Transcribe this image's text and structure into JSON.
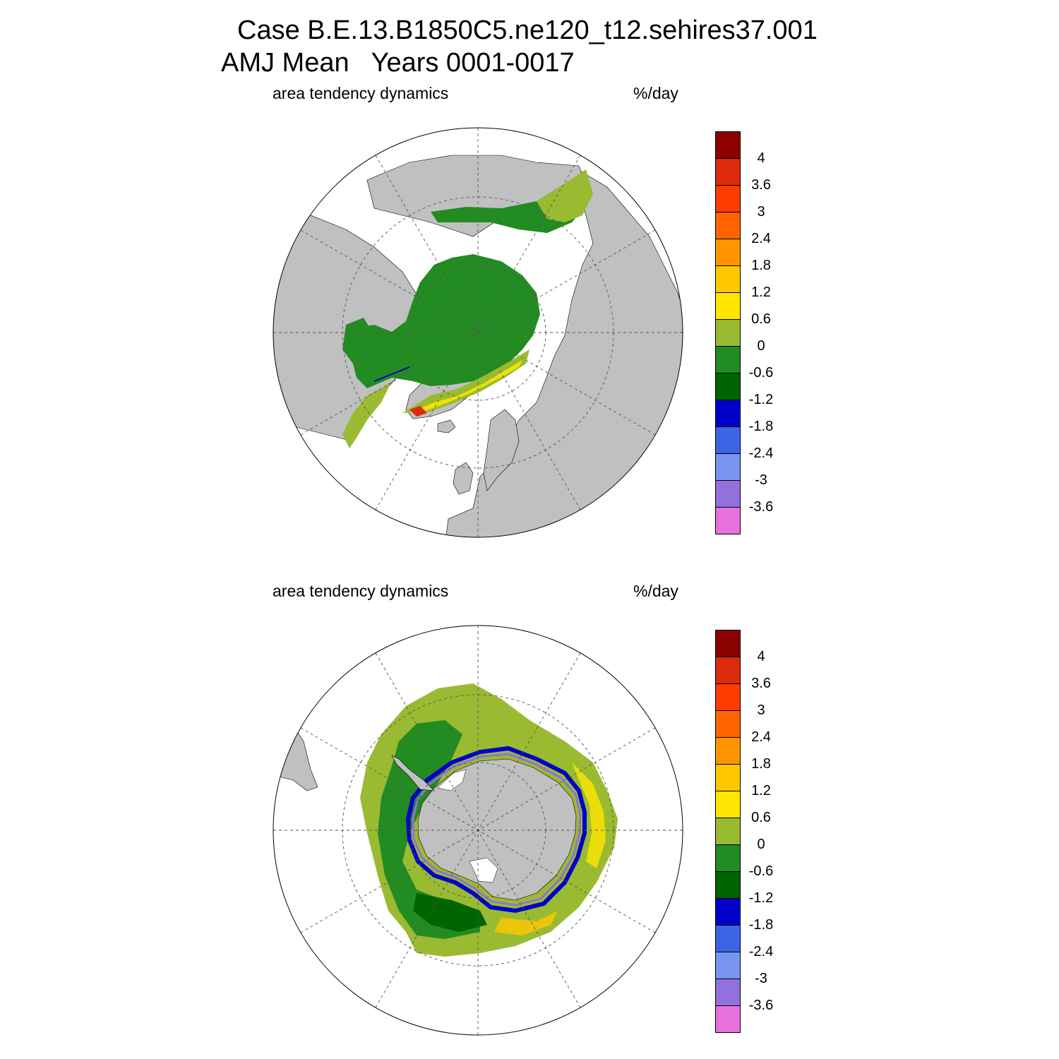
{
  "title": {
    "line1": "Case B.E.13.B1850C5.ne120_t12.sehires37.001",
    "line2": "AMJ Mean   Years 0001-0017"
  },
  "panels": [
    {
      "id": "north",
      "left_label": "area tendency dynamics",
      "right_label": "%/day"
    },
    {
      "id": "south",
      "left_label": "area tendency dynamics",
      "right_label": "%/day"
    }
  ],
  "colorbar": {
    "colors": [
      "#8b0000",
      "#dc2a0d",
      "#ff3c00",
      "#ff6400",
      "#ff9600",
      "#ffc800",
      "#ffe600",
      "#9aba32",
      "#228b22",
      "#006400",
      "#0000c8",
      "#3c64e6",
      "#7896f0",
      "#9370db",
      "#e673dc"
    ],
    "labels": [
      "4",
      "3.6",
      "3",
      "2.4",
      "1.8",
      "1.2",
      "0.6",
      "0",
      "-0.6",
      "-1.2",
      "-1.8",
      "-2.4",
      "-3",
      "-3.6"
    ]
  },
  "colors": {
    "land": "#c0c0c0",
    "ocean": "#ffffff",
    "ice_interior": "#228b22",
    "ice_edge": "#9aba32",
    "gridline": "#555555"
  }
}
